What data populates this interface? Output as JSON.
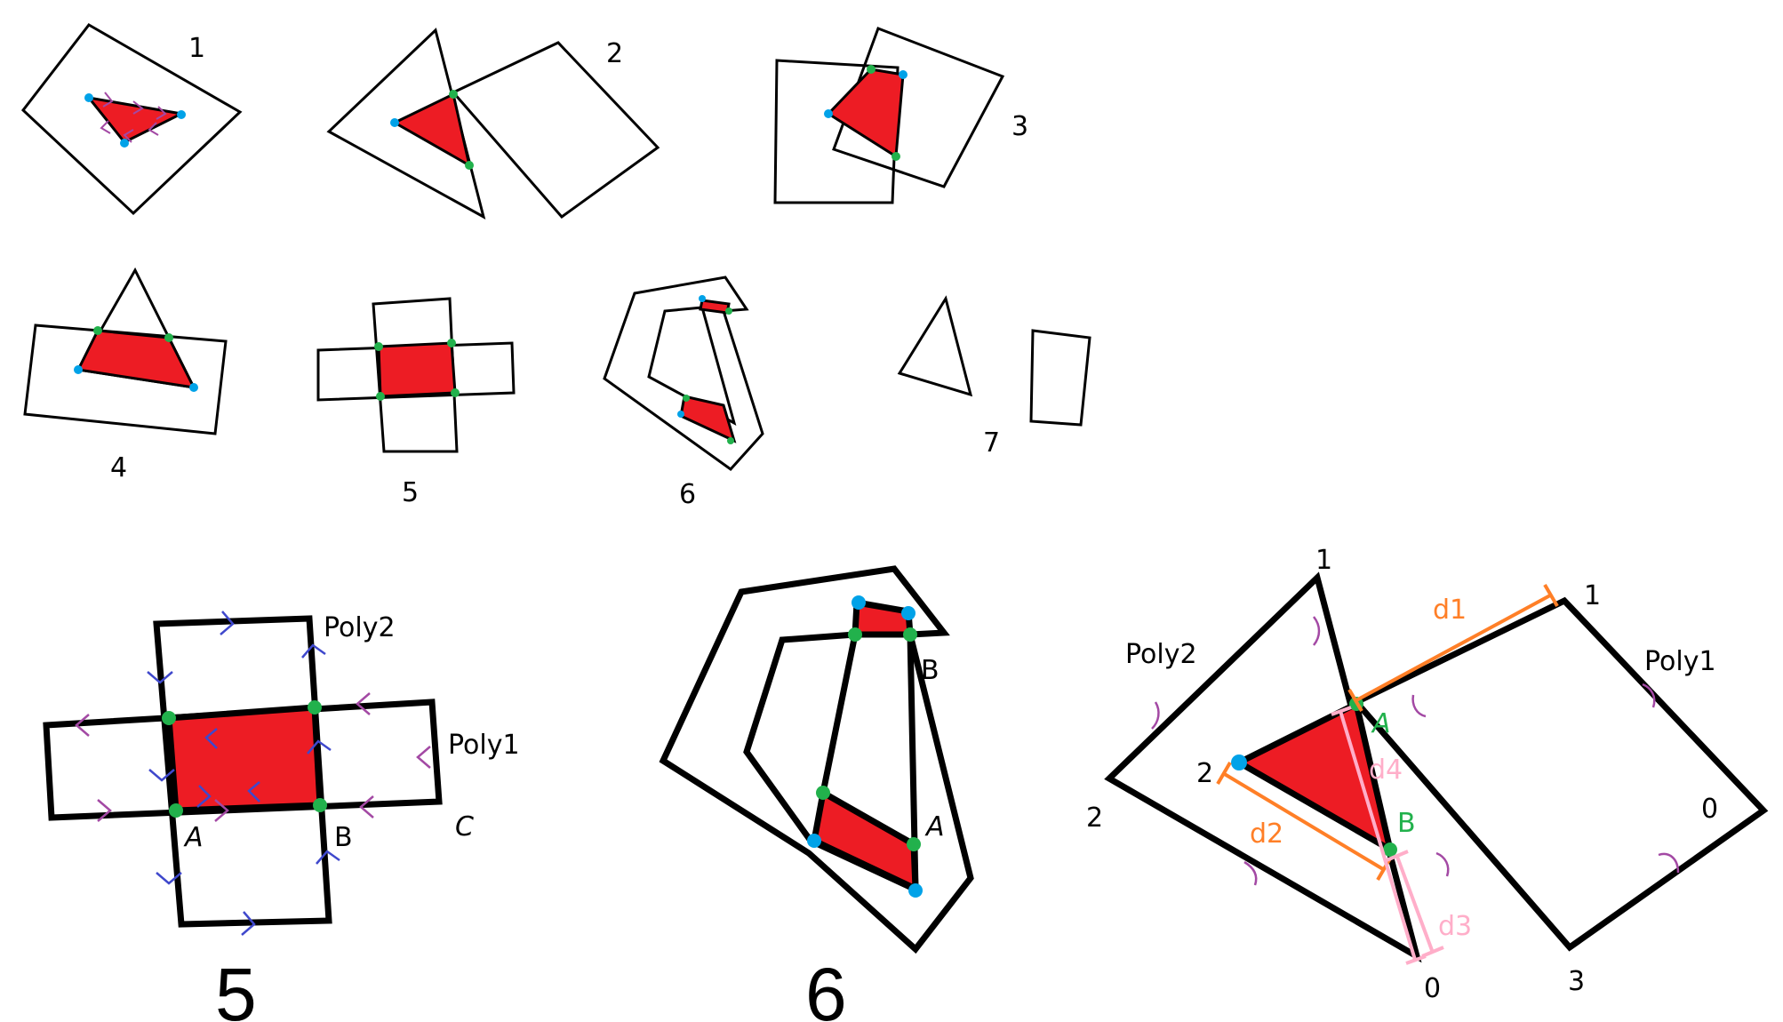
{
  "colors": {
    "fill": "#ed1c24",
    "outline": "#000000",
    "intersection_point": "#22b14c",
    "vertex_point": "#00a2e8",
    "direction_mark_purple": "#a349a4",
    "direction_mark_blue": "#3f48cc",
    "distance_orange": "#ff7f27",
    "distance_pink": "#ffaec9"
  },
  "small_cases": {
    "c1": "1",
    "c2": "2",
    "c3": "3",
    "c4": "4",
    "c5": "5",
    "c6": "6",
    "c7": "7"
  },
  "case5_detail": {
    "caption": "5",
    "poly2": "Poly2",
    "poly1": "Poly1",
    "a": "A",
    "b": "B",
    "c": "C"
  },
  "case6_detail": {
    "caption": "6",
    "a": "A",
    "b": "B"
  },
  "distance_detail": {
    "poly2": "Poly2",
    "poly1": "Poly1",
    "poly2_v0": "0",
    "poly2_v1": "1",
    "poly2_v2": "2",
    "poly1_v0": "0",
    "poly1_v1": "1",
    "poly1_v2": "2",
    "poly1_v3": "3",
    "a": "A",
    "b": "B",
    "d1": "d1",
    "d2": "d2",
    "d3": "d3",
    "d4": "d4"
  }
}
